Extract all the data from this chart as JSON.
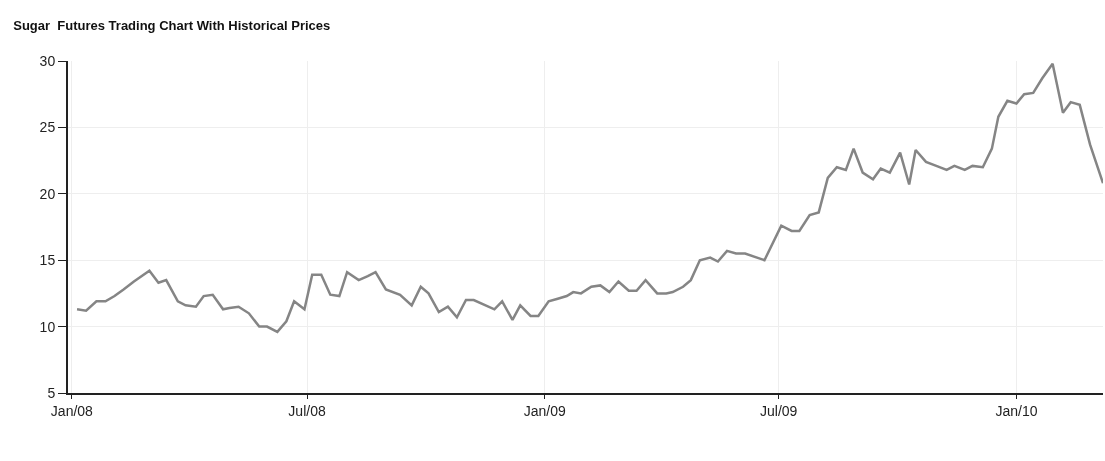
{
  "chart_data": {
    "type": "line",
    "title": "Sugar  Futures Trading Chart With Historical Prices",
    "x": [
      "2008-01-05",
      "2008-01-12",
      "2008-01-20",
      "2008-01-27",
      "2008-02-03",
      "2008-02-10",
      "2008-02-18",
      "2008-03-01",
      "2008-03-08",
      "2008-03-14",
      "2008-03-23",
      "2008-03-29",
      "2008-04-06",
      "2008-04-12",
      "2008-04-19",
      "2008-04-27",
      "2008-05-02",
      "2008-05-09",
      "2008-05-17",
      "2008-05-25",
      "2008-05-31",
      "2008-06-08",
      "2008-06-15",
      "2008-06-21",
      "2008-06-29",
      "2008-07-05",
      "2008-07-12",
      "2008-07-19",
      "2008-07-26",
      "2008-08-01",
      "2008-08-10",
      "2008-08-17",
      "2008-08-23",
      "2008-08-31",
      "2008-09-11",
      "2008-09-20",
      "2008-09-27",
      "2008-10-03",
      "2008-10-11",
      "2008-10-18",
      "2008-10-25",
      "2008-11-01",
      "2008-11-07",
      "2008-11-23",
      "2008-11-29",
      "2008-12-07",
      "2008-12-13",
      "2008-12-21",
      "2008-12-27",
      "2009-01-04",
      "2009-01-11",
      "2009-01-18",
      "2009-01-23",
      "2009-01-29",
      "2009-02-06",
      "2009-02-13",
      "2009-02-20",
      "2009-02-27",
      "2009-03-07",
      "2009-03-13",
      "2009-03-20",
      "2009-03-29",
      "2009-04-05",
      "2009-04-10",
      "2009-04-18",
      "2009-04-24",
      "2009-05-01",
      "2009-05-09",
      "2009-05-15",
      "2009-05-22",
      "2009-05-29",
      "2009-06-05",
      "2009-06-20",
      "2009-07-03",
      "2009-07-11",
      "2009-07-17",
      "2009-07-25",
      "2009-08-01",
      "2009-08-08",
      "2009-08-15",
      "2009-08-22",
      "2009-08-28",
      "2009-09-04",
      "2009-09-12",
      "2009-09-18",
      "2009-09-25",
      "2009-10-03",
      "2009-10-10",
      "2009-10-15",
      "2009-10-23",
      "2009-10-31",
      "2009-11-08",
      "2009-11-14",
      "2009-11-22",
      "2009-11-28",
      "2009-12-06",
      "2009-12-13",
      "2009-12-18",
      "2009-12-25",
      "2010-01-01",
      "2010-01-07",
      "2010-01-14",
      "2010-01-21",
      "2010-01-29",
      "2010-02-06",
      "2010-02-12",
      "2010-02-19",
      "2010-02-27",
      "2010-03-09"
    ],
    "series": [
      {
        "color": "#858585",
        "values": [
          11.3,
          11.2,
          11.9,
          11.9,
          12.3,
          12.8,
          13.4,
          14.2,
          13.3,
          13.5,
          11.9,
          11.6,
          11.5,
          12.3,
          12.4,
          11.3,
          11.4,
          11.5,
          11.0,
          10.0,
          10.0,
          9.6,
          10.4,
          11.9,
          11.3,
          13.9,
          13.9,
          12.4,
          12.3,
          14.1,
          13.5,
          13.8,
          14.1,
          12.8,
          12.4,
          11.6,
          13.0,
          12.5,
          11.1,
          11.5,
          10.7,
          12.0,
          12.0,
          11.3,
          11.9,
          10.5,
          11.6,
          10.8,
          10.8,
          11.9,
          12.1,
          12.3,
          12.6,
          12.5,
          13.0,
          13.1,
          12.6,
          13.4,
          12.7,
          12.7,
          13.5,
          12.5,
          12.5,
          12.6,
          13.0,
          13.5,
          15.0,
          15.2,
          14.9,
          15.7,
          15.5,
          15.5,
          15.0,
          17.6,
          17.2,
          17.2,
          18.4,
          18.6,
          21.2,
          22.0,
          21.8,
          23.4,
          21.6,
          21.1,
          21.9,
          21.6,
          23.1,
          20.7,
          23.3,
          22.4,
          22.1,
          21.8,
          22.1,
          21.8,
          22.1,
          22.0,
          23.4,
          25.8,
          27.0,
          26.8,
          27.5,
          27.6,
          28.7,
          29.8,
          26.1,
          26.9,
          26.7,
          23.7,
          20.8
        ]
      }
    ],
    "xlim": [
      "2007-12-29",
      "2010-03-09"
    ],
    "xticks": [
      {
        "value": "2008-01-01",
        "label": "Jan/08"
      },
      {
        "value": "2008-07-01",
        "label": "Jul/08"
      },
      {
        "value": "2009-01-01",
        "label": "Jan/09"
      },
      {
        "value": "2009-07-01",
        "label": "Jul/09"
      },
      {
        "value": "2010-01-01",
        "label": "Jan/10"
      }
    ],
    "ylim": [
      5,
      30
    ],
    "yticks": [
      5,
      10,
      15,
      20,
      25,
      30
    ],
    "grid": true,
    "line_style": "solid"
  }
}
